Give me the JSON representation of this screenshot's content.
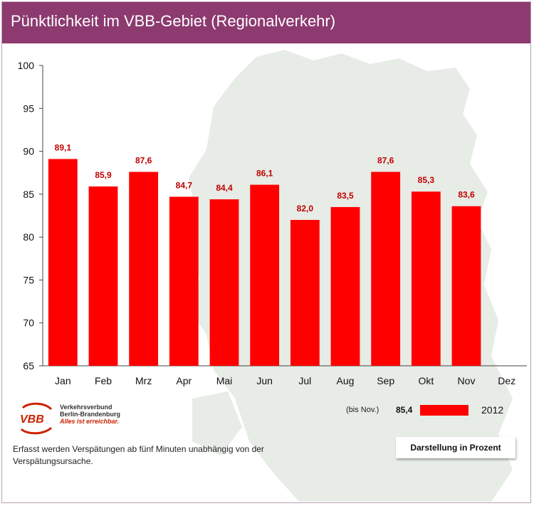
{
  "title": "Pünktlichkeit im VBB-Gebiet (Regionalverkehr)",
  "colors": {
    "header": "#8c3a6f",
    "bar": "#ff0000",
    "label": "#c00000",
    "map": "#e7ece6"
  },
  "chart_data": {
    "type": "bar",
    "categories": [
      "Jan",
      "Feb",
      "Mrz",
      "Apr",
      "Mai",
      "Jun",
      "Jul",
      "Aug",
      "Sep",
      "Okt",
      "Nov",
      "Dez"
    ],
    "series": [
      {
        "name": "2012",
        "values": [
          89.1,
          85.9,
          87.6,
          84.7,
          84.4,
          86.1,
          82.0,
          83.5,
          87.6,
          85.3,
          83.6,
          null
        ],
        "labels": [
          "89,1",
          "85,9",
          "87,6",
          "84,7",
          "84,4",
          "86,1",
          "82,0",
          "83,5",
          "87,6",
          "85,3",
          "83,6",
          ""
        ]
      }
    ],
    "ylim": [
      65,
      100
    ],
    "yticks": [
      65,
      70,
      75,
      80,
      85,
      90,
      95,
      100
    ],
    "grid": false,
    "legend_position": "bottom-right"
  },
  "legend": {
    "prefix": "(bis Nov.)",
    "value": "85,4",
    "label": "2012"
  },
  "logo": {
    "mark": "VBB",
    "line1": "Verkehrsverbund",
    "line2": "Berlin-Brandenburg",
    "line3": "Alles ist erreichbar."
  },
  "footnote": "Erfasst werden Verspätungen ab fünf Minuten unabhängig von der Verspätungsursache.",
  "badge": "Darstellung in Prozent"
}
